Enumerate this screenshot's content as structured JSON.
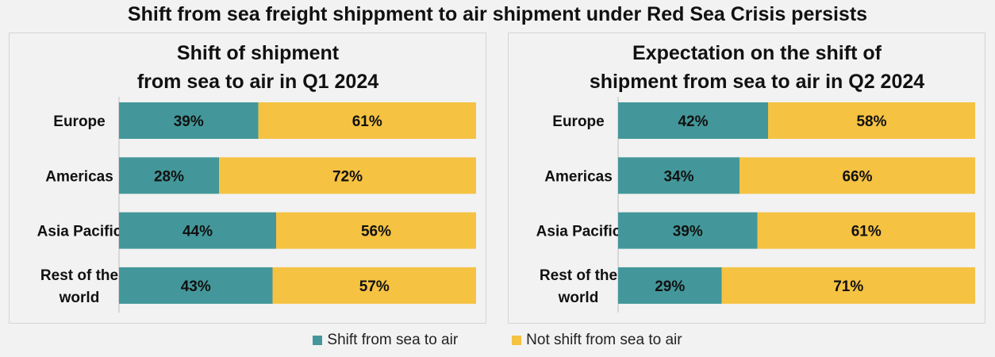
{
  "title": "Shift from sea freight shippment to air shipment under Red Sea Crisis persists",
  "colors": {
    "shift": "#43979a",
    "not_shift": "#f5c242",
    "background": "#f2f2f2"
  },
  "legend": [
    {
      "label": "Shift from sea to air",
      "color": "#43979a"
    },
    {
      "label": "Not shift from sea to air",
      "color": "#f5c242"
    }
  ],
  "chart_data": [
    {
      "type": "bar",
      "orientation": "horizontal",
      "stacked": "100%",
      "title_lines": [
        "Shift of shipment",
        "from sea to air in Q1 2024"
      ],
      "categories": [
        [
          "Europe"
        ],
        [
          "Americas"
        ],
        [
          "Asia Pacific"
        ],
        [
          "Rest of the",
          "world"
        ]
      ],
      "series": [
        {
          "name": "Shift from sea to air",
          "values": [
            39,
            28,
            44,
            43
          ]
        },
        {
          "name": "Not shift from sea to air",
          "values": [
            61,
            72,
            56,
            57
          ]
        }
      ],
      "xlim": [
        0,
        100
      ],
      "value_suffix": "%"
    },
    {
      "type": "bar",
      "orientation": "horizontal",
      "stacked": "100%",
      "title_lines": [
        "Expectation on the shift of",
        "shipment from sea to air in Q2 2024"
      ],
      "categories": [
        [
          "Europe"
        ],
        [
          "Americas"
        ],
        [
          "Asia Pacific"
        ],
        [
          "Rest of the",
          "world"
        ]
      ],
      "series": [
        {
          "name": "Shift from sea to air",
          "values": [
            42,
            34,
            39,
            29
          ]
        },
        {
          "name": "Not shift from sea to air",
          "values": [
            58,
            66,
            61,
            71
          ]
        }
      ],
      "xlim": [
        0,
        100
      ],
      "value_suffix": "%"
    }
  ]
}
